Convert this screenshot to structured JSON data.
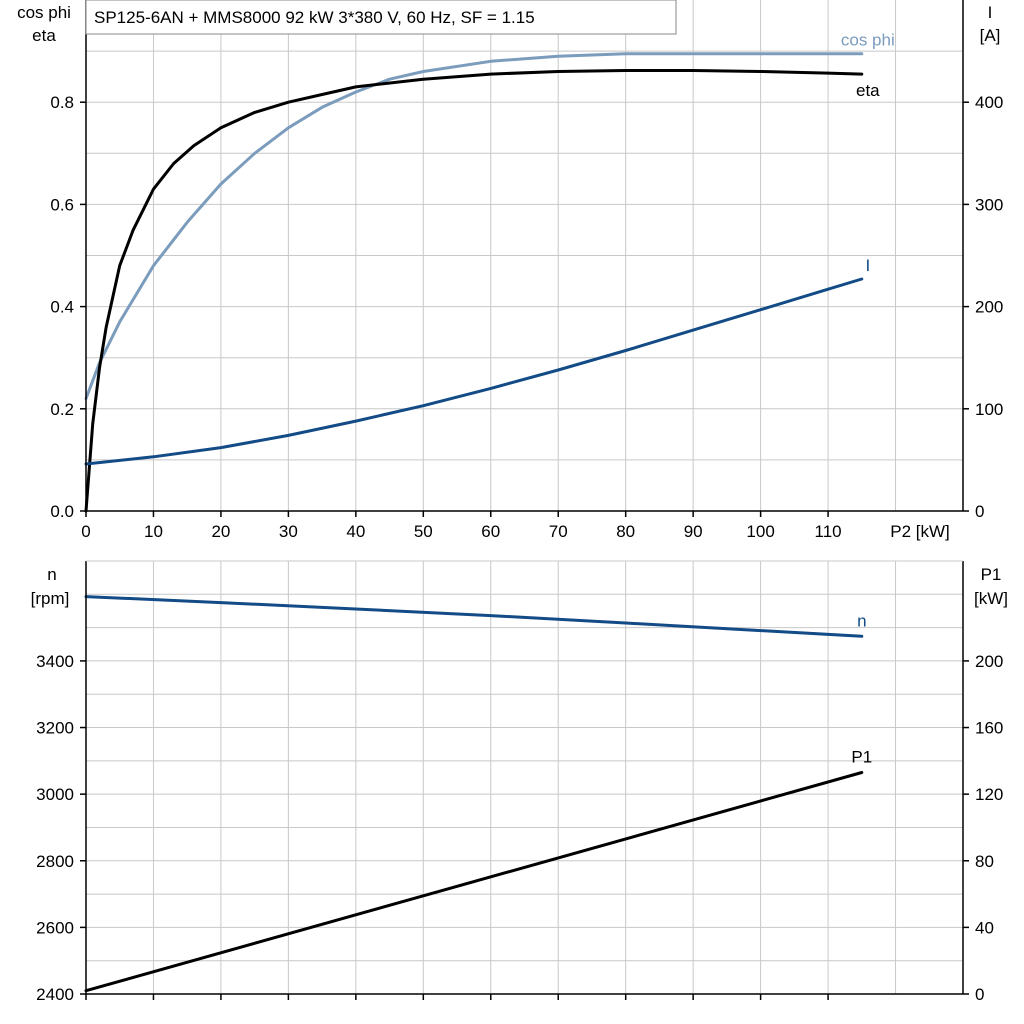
{
  "title": "SP125-6AN + MMS8000   92 kW   3*380 V, 60 Hz, SF = 1.15",
  "colors": {
    "grid": "#c8c8c8",
    "axis": "#000000",
    "cos_phi": "#7b9cbc",
    "eta": "#000000",
    "current": "#124b86",
    "speed": "#124b86",
    "p1": "#000000"
  },
  "chart_data": [
    {
      "type": "line",
      "panel": "top",
      "x_axis": {
        "label": "P2 [kW]",
        "range": [
          0,
          130
        ],
        "ticks": [
          0,
          10,
          20,
          30,
          40,
          50,
          60,
          70,
          80,
          90,
          100,
          110
        ],
        "grid_step": 10
      },
      "y_left": {
        "label_line1": "cos phi",
        "label_line2": "eta",
        "range": [
          0,
          1.0
        ],
        "ticks": [
          0.0,
          0.2,
          0.4,
          0.6,
          0.8
        ],
        "tick_labels": [
          "0.0",
          "0.2",
          "0.4",
          "0.6",
          "0.8"
        ],
        "grid_step": 0.1
      },
      "y_right": {
        "label_line1": "I",
        "label_line2": "[A]",
        "range": [
          0,
          500
        ],
        "ticks": [
          0,
          100,
          200,
          300,
          400
        ],
        "tick_labels": [
          "0",
          "100",
          "200",
          "300",
          "400"
        ]
      },
      "grid": true,
      "series": [
        {
          "name": "cos phi",
          "axis": "left",
          "color_key": "cos_phi",
          "x": [
            0,
            2,
            5,
            10,
            15,
            20,
            25,
            30,
            35,
            40,
            45,
            50,
            60,
            70,
            80,
            90,
            100,
            110,
            115
          ],
          "y": [
            0.22,
            0.29,
            0.37,
            0.48,
            0.565,
            0.64,
            0.7,
            0.75,
            0.79,
            0.82,
            0.845,
            0.86,
            0.88,
            0.89,
            0.895,
            0.895,
            0.895,
            0.895,
            0.895
          ]
        },
        {
          "name": "eta",
          "axis": "left",
          "color_key": "eta",
          "x": [
            0,
            1,
            2,
            3,
            5,
            7,
            10,
            13,
            16,
            20,
            25,
            30,
            35,
            40,
            50,
            60,
            70,
            80,
            90,
            100,
            110,
            115
          ],
          "y": [
            0.0,
            0.17,
            0.28,
            0.36,
            0.48,
            0.55,
            0.63,
            0.68,
            0.715,
            0.75,
            0.78,
            0.8,
            0.815,
            0.83,
            0.845,
            0.855,
            0.86,
            0.862,
            0.862,
            0.86,
            0.857,
            0.855
          ]
        },
        {
          "name": "I",
          "axis": "right",
          "color_key": "current",
          "x": [
            0,
            10,
            20,
            30,
            40,
            50,
            60,
            70,
            80,
            90,
            100,
            110,
            115
          ],
          "y": [
            46,
            53,
            62,
            74,
            88,
            103,
            120,
            138,
            157,
            177,
            197,
            217,
            227
          ]
        }
      ]
    },
    {
      "type": "line",
      "panel": "bottom",
      "x_axis": {
        "range": [
          0,
          130
        ],
        "grid_step": 10
      },
      "y_left": {
        "label_line1": "n",
        "label_line2": "[rpm]",
        "range": [
          2400,
          3700
        ],
        "ticks": [
          2400,
          2600,
          2800,
          3000,
          3200,
          3400
        ],
        "tick_labels": [
          "2400",
          "2600",
          "2800",
          "3000",
          "3200",
          "3400"
        ],
        "grid_step": 100
      },
      "y_right": {
        "label_line1": "P1",
        "label_line2": "[kW]",
        "range": [
          0,
          260
        ],
        "ticks": [
          0,
          40,
          80,
          120,
          160,
          200
        ],
        "tick_labels": [
          "0",
          "40",
          "80",
          "120",
          "160",
          "200"
        ]
      },
      "grid": true,
      "series": [
        {
          "name": "n",
          "axis": "left",
          "color_key": "speed",
          "x": [
            0,
            20,
            40,
            60,
            80,
            100,
            115
          ],
          "y": [
            3593,
            3575,
            3556,
            3536,
            3514,
            3491,
            3474
          ]
        },
        {
          "name": "P1",
          "axis": "right",
          "color_key": "p1",
          "x": [
            0,
            115
          ],
          "y": [
            2,
            133
          ]
        }
      ]
    }
  ]
}
